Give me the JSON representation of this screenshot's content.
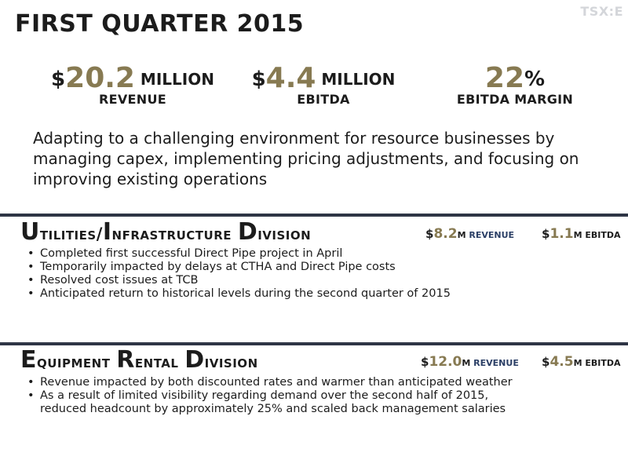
{
  "ticker": "TSX:E",
  "title": "FIRST QUARTER 2015",
  "metrics": [
    {
      "prefix": "$",
      "value": "20.2",
      "suffix": " MILLION",
      "caption": "REVENUE"
    },
    {
      "prefix": "$",
      "value": "4.4",
      "suffix": " MILLION",
      "caption": "EBITDA"
    },
    {
      "prefix": "",
      "value": "22",
      "suffix": "%",
      "caption": "EBITDA MARGIN"
    }
  ],
  "intro": "Adapting to a challenging environment for resource businesses by managing capex, implementing pricing adjustments, and focusing on improving existing operations",
  "divisions": [
    {
      "title_cap1": "U",
      "title_rest1": "tilities/",
      "title_cap2": "I",
      "title_rest2": "nfrastructure ",
      "title_cap3": "D",
      "title_rest3": "ivision",
      "revenue": {
        "dollar": "$",
        "value": "8.2",
        "unit": "M",
        "label": " REVENUE"
      },
      "ebitda": {
        "dollar": "$",
        "value": "1.1",
        "unit": "M",
        "label": " EBITDA"
      },
      "bullets": [
        "Completed first successful Direct Pipe project in April",
        "Temporarily impacted by delays at CTHA and Direct Pipe costs",
        "Resolved cost issues at TCB",
        "Anticipated return to historical levels during the second quarter of 2015"
      ]
    },
    {
      "title_cap1": "E",
      "title_rest1": "quipment ",
      "title_cap2": "R",
      "title_rest2": "ental ",
      "title_cap3": "D",
      "title_rest3": "ivision",
      "revenue": {
        "dollar": "$",
        "value": "12.0",
        "unit": "M",
        "label": " REVENUE"
      },
      "ebitda": {
        "dollar": "$",
        "value": "4.5",
        "unit": "M",
        "label": " EBITDA"
      },
      "bullets": [
        "Revenue impacted by both discounted rates and warmer than anticipated weather",
        "As a result of limited visibility regarding demand over the second half of 2015, reduced headcount by approximately 25% and scaled back management salaries"
      ]
    }
  ]
}
